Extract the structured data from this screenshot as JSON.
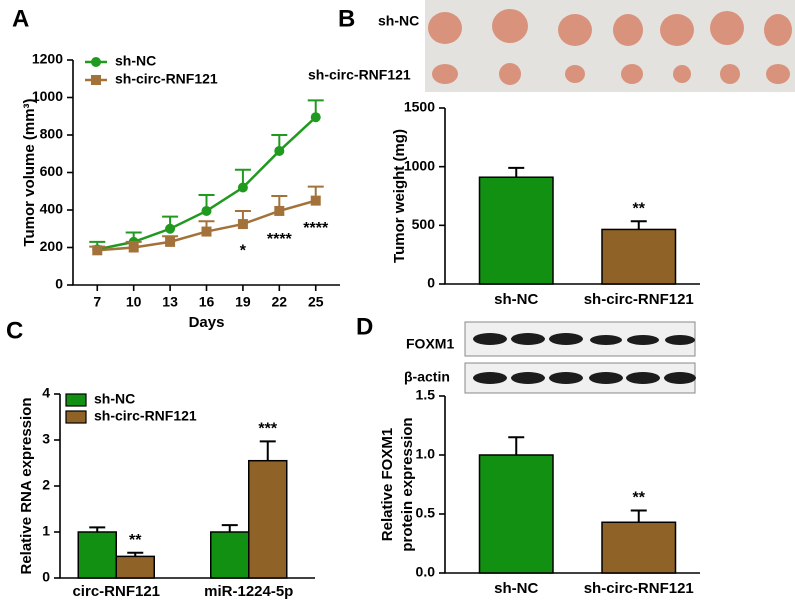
{
  "chart_data": [
    {
      "type": "line",
      "panel": "A",
      "xlabel": "Days",
      "ylabel": "Tumor volume (mm³)",
      "x": [
        7,
        10,
        13,
        16,
        19,
        22,
        25
      ],
      "xlim": [
        5,
        27
      ],
      "xticks": [
        7,
        10,
        13,
        16,
        19,
        22,
        25
      ],
      "ylim": [
        0,
        1200
      ],
      "yticks": [
        0,
        200,
        400,
        600,
        800,
        1000,
        1200
      ],
      "legend": "upper left",
      "series": [
        {
          "name": "sh-NC",
          "color": "#1f9a1f",
          "marker": "circle",
          "values": [
            190,
            230,
            300,
            395,
            520,
            715,
            895
          ],
          "errors": [
            40,
            50,
            65,
            85,
            95,
            85,
            90
          ]
        },
        {
          "name": "sh-circ-RNF121",
          "color": "#a3723a",
          "marker": "square",
          "values": [
            185,
            200,
            230,
            285,
            325,
            395,
            450
          ],
          "errors": [
            20,
            30,
            30,
            55,
            70,
            80,
            75
          ],
          "significance": [
            null,
            null,
            null,
            null,
            "*",
            "****",
            "****"
          ]
        }
      ]
    },
    {
      "type": "bar",
      "panel": "B",
      "photo_labels": [
        "sh-NC",
        "sh-circ-RNF121"
      ],
      "ylabel": "Tumor weight (mg)",
      "categories": [
        "sh-NC",
        "sh-circ-RNF121"
      ],
      "values": [
        910,
        465
      ],
      "errors": [
        80,
        70
      ],
      "colors": [
        "#129012",
        "#8f6228"
      ],
      "significance": [
        null,
        "**"
      ],
      "ylim": [
        0,
        1500
      ],
      "yticks": [
        0,
        500,
        1000,
        1500
      ]
    },
    {
      "type": "grouped_bar",
      "panel": "C",
      "ylabel": "Relative RNA expression",
      "categories": [
        "circ-RNF121",
        "miR-1224-5p"
      ],
      "ylim": [
        0,
        4
      ],
      "yticks": [
        0,
        1,
        2,
        3,
        4
      ],
      "legend": "upper left",
      "series": [
        {
          "name": "sh-NC",
          "color": "#129012",
          "values": [
            1.0,
            1.0
          ],
          "errors": [
            0.1,
            0.15
          ]
        },
        {
          "name": "sh-circ-RNF121",
          "color": "#8f6228",
          "values": [
            0.47,
            2.55
          ],
          "errors": [
            0.08,
            0.42
          ],
          "significance": [
            "**",
            "***"
          ]
        }
      ]
    },
    {
      "type": "bar",
      "panel": "D",
      "blot_labels": [
        "FOXM1",
        "β-actin"
      ],
      "ylabel": [
        "Relative FOXM1",
        "protein expression"
      ],
      "categories": [
        "sh-NC",
        "sh-circ-RNF121"
      ],
      "values": [
        1.0,
        0.43
      ],
      "errors": [
        0.15,
        0.1
      ],
      "colors": [
        "#129012",
        "#8f6228"
      ],
      "significance": [
        null,
        "**"
      ],
      "ylim": [
        0,
        1.5
      ],
      "yticks": [
        {
          "value": 0,
          "label": "0.0"
        },
        0.5,
        {
          "value": 1,
          "label": "1.0"
        },
        1.5
      ]
    }
  ]
}
